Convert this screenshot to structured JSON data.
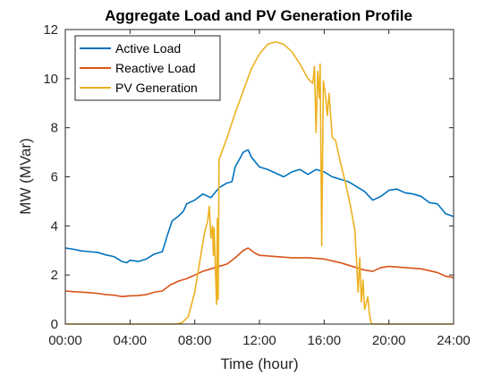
{
  "chart_data": {
    "type": "line",
    "title": "Aggregate Load and PV Generation Profile",
    "xlabel": "Time (hour)",
    "ylabel": "MW (MVar)",
    "xlim": [
      0,
      24
    ],
    "ylim": [
      0,
      12
    ],
    "x_ticks": [
      0,
      4,
      8,
      12,
      16,
      20,
      24
    ],
    "x_tick_labels": [
      "00:00",
      "04:00",
      "08:00",
      "12:00",
      "16:00",
      "20:00",
      "24:00"
    ],
    "y_ticks": [
      0,
      2,
      4,
      6,
      8,
      10,
      12
    ],
    "y_tick_labels": [
      "0",
      "2",
      "4",
      "6",
      "8",
      "10",
      "12"
    ],
    "grid": false,
    "legend_position": "top-left",
    "series": [
      {
        "name": "Active Load",
        "color": "#0072BD",
        "points": [
          [
            0,
            3.1
          ],
          [
            0.5,
            3.05
          ],
          [
            1,
            2.98
          ],
          [
            1.5,
            2.95
          ],
          [
            2,
            2.92
          ],
          [
            2.5,
            2.82
          ],
          [
            3,
            2.75
          ],
          [
            3.5,
            2.55
          ],
          [
            3.8,
            2.5
          ],
          [
            4,
            2.6
          ],
          [
            4.5,
            2.55
          ],
          [
            5,
            2.65
          ],
          [
            5.5,
            2.85
          ],
          [
            6,
            2.95
          ],
          [
            6.3,
            3.6
          ],
          [
            6.6,
            4.2
          ],
          [
            7,
            4.4
          ],
          [
            7.3,
            4.6
          ],
          [
            7.5,
            4.9
          ],
          [
            8,
            5.05
          ],
          [
            8.5,
            5.3
          ],
          [
            9,
            5.15
          ],
          [
            9.5,
            5.55
          ],
          [
            10,
            5.75
          ],
          [
            10.3,
            5.8
          ],
          [
            10.5,
            6.4
          ],
          [
            11,
            7.0
          ],
          [
            11.3,
            7.1
          ],
          [
            11.5,
            6.8
          ],
          [
            12,
            6.4
          ],
          [
            12.5,
            6.3
          ],
          [
            13,
            6.15
          ],
          [
            13.5,
            6.0
          ],
          [
            14,
            6.2
          ],
          [
            14.5,
            6.3
          ],
          [
            15,
            6.1
          ],
          [
            15.5,
            6.3
          ],
          [
            16,
            6.2
          ],
          [
            16.5,
            6.0
          ],
          [
            17,
            5.9
          ],
          [
            17.5,
            5.8
          ],
          [
            18,
            5.6
          ],
          [
            18.5,
            5.4
          ],
          [
            19,
            5.05
          ],
          [
            19.5,
            5.2
          ],
          [
            20,
            5.45
          ],
          [
            20.5,
            5.5
          ],
          [
            21,
            5.35
          ],
          [
            21.5,
            5.3
          ],
          [
            22,
            5.2
          ],
          [
            22.5,
            4.95
          ],
          [
            23,
            4.9
          ],
          [
            23.5,
            4.5
          ],
          [
            24,
            4.38
          ]
        ]
      },
      {
        "name": "Reactive Load",
        "color": "#D95319",
        "points": [
          [
            0,
            1.35
          ],
          [
            0.5,
            1.32
          ],
          [
            1,
            1.3
          ],
          [
            1.5,
            1.28
          ],
          [
            2,
            1.25
          ],
          [
            2.5,
            1.2
          ],
          [
            3,
            1.18
          ],
          [
            3.5,
            1.12
          ],
          [
            4,
            1.15
          ],
          [
            4.5,
            1.16
          ],
          [
            5,
            1.2
          ],
          [
            5.5,
            1.3
          ],
          [
            6,
            1.35
          ],
          [
            6.5,
            1.6
          ],
          [
            7,
            1.75
          ],
          [
            7.5,
            1.85
          ],
          [
            8,
            2.0
          ],
          [
            8.5,
            2.15
          ],
          [
            9,
            2.25
          ],
          [
            9.5,
            2.35
          ],
          [
            10,
            2.45
          ],
          [
            10.5,
            2.7
          ],
          [
            11,
            3.0
          ],
          [
            11.3,
            3.1
          ],
          [
            11.7,
            2.9
          ],
          [
            12,
            2.8
          ],
          [
            13,
            2.75
          ],
          [
            14,
            2.7
          ],
          [
            15,
            2.7
          ],
          [
            16,
            2.65
          ],
          [
            17,
            2.5
          ],
          [
            18,
            2.3
          ],
          [
            18.5,
            2.2
          ],
          [
            19,
            2.15
          ],
          [
            19.5,
            2.3
          ],
          [
            20,
            2.35
          ],
          [
            21,
            2.3
          ],
          [
            22,
            2.25
          ],
          [
            23,
            2.1
          ],
          [
            23.5,
            1.95
          ],
          [
            24,
            1.9
          ]
        ]
      },
      {
        "name": "PV Generation",
        "color": "#EDB120",
        "points": [
          [
            0,
            0
          ],
          [
            6.8,
            0
          ],
          [
            7.2,
            0.05
          ],
          [
            7.6,
            0.3
          ],
          [
            8.0,
            1.3
          ],
          [
            8.3,
            2.5
          ],
          [
            8.6,
            3.7
          ],
          [
            8.8,
            4.2
          ],
          [
            8.9,
            4.8
          ],
          [
            9.0,
            3.5
          ],
          [
            9.1,
            4.0
          ],
          [
            9.15,
            2.8
          ],
          [
            9.2,
            3.9
          ],
          [
            9.3,
            1.8
          ],
          [
            9.35,
            0.8
          ],
          [
            9.4,
            4.3
          ],
          [
            9.45,
            1.0
          ],
          [
            9.5,
            6.7
          ],
          [
            10,
            7.6
          ],
          [
            10.5,
            8.6
          ],
          [
            11,
            9.5
          ],
          [
            11.5,
            10.4
          ],
          [
            12,
            11.0
          ],
          [
            12.5,
            11.4
          ],
          [
            13,
            11.5
          ],
          [
            13.5,
            11.4
          ],
          [
            14,
            11.1
          ],
          [
            14.5,
            10.6
          ],
          [
            15,
            10.0
          ],
          [
            15.3,
            9.8
          ],
          [
            15.4,
            10.5
          ],
          [
            15.5,
            7.8
          ],
          [
            15.6,
            10.3
          ],
          [
            15.7,
            9.2
          ],
          [
            15.75,
            10.6
          ],
          [
            15.85,
            3.2
          ],
          [
            15.95,
            9.9
          ],
          [
            16.05,
            9.5
          ],
          [
            16.2,
            8.5
          ],
          [
            16.3,
            9.4
          ],
          [
            16.5,
            7.6
          ],
          [
            16.7,
            7.5
          ],
          [
            17,
            6.6
          ],
          [
            17.3,
            5.8
          ],
          [
            17.6,
            4.9
          ],
          [
            17.9,
            3.8
          ],
          [
            18.0,
            2.6
          ],
          [
            18.1,
            1.3
          ],
          [
            18.2,
            2.7
          ],
          [
            18.3,
            0.9
          ],
          [
            18.4,
            1.8
          ],
          [
            18.5,
            0.6
          ],
          [
            18.7,
            1.1
          ],
          [
            18.8,
            0.4
          ],
          [
            18.9,
            0.05
          ],
          [
            19.0,
            0
          ],
          [
            24,
            0
          ]
        ]
      }
    ]
  }
}
